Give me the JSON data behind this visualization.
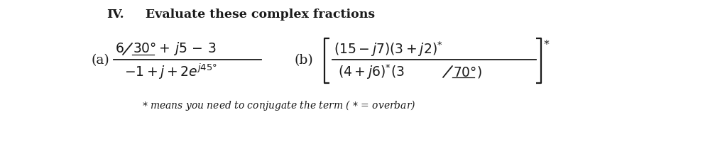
{
  "title_roman": "IV.",
  "title_text": "Evaluate these complex fractions",
  "label_a": "(a)",
  "label_b": "(b)",
  "bg_color": "#ffffff",
  "text_color": "#1a1a1a",
  "font_size_title": 12.5,
  "font_size_body": 13.5,
  "font_size_footnote": 10.0,
  "fig_width": 10.07,
  "fig_height": 2.17,
  "dpi": 100
}
